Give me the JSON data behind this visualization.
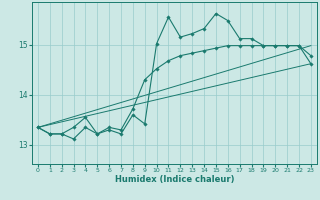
{
  "title": "",
  "xlabel": "Humidex (Indice chaleur)",
  "bg_color": "#cce8e5",
  "line_color": "#1a7a6e",
  "grid_color_major": "#99cccc",
  "grid_color_minor": "#b8ddd9",
  "xlim": [
    -0.5,
    23.5
  ],
  "ylim": [
    12.62,
    15.85
  ],
  "yticks": [
    13,
    14,
    15
  ],
  "xticks": [
    0,
    1,
    2,
    3,
    4,
    5,
    6,
    7,
    8,
    9,
    10,
    11,
    12,
    13,
    14,
    15,
    16,
    17,
    18,
    19,
    20,
    21,
    22,
    23
  ],
  "curve1_x": [
    0,
    1,
    2,
    3,
    4,
    5,
    6,
    7,
    8,
    9,
    10,
    11,
    12,
    13,
    14,
    15,
    16,
    17,
    18,
    19,
    20,
    21,
    22,
    23
  ],
  "curve1_y": [
    13.35,
    13.22,
    13.22,
    13.12,
    13.35,
    13.22,
    13.3,
    13.22,
    13.6,
    13.42,
    15.02,
    15.55,
    15.15,
    15.22,
    15.32,
    15.62,
    15.48,
    15.12,
    15.12,
    14.98,
    14.98,
    14.98,
    14.98,
    14.78
  ],
  "curve2_x": [
    0,
    1,
    2,
    3,
    4,
    5,
    6,
    7,
    8,
    9,
    10,
    11,
    12,
    13,
    14,
    15,
    16,
    17,
    18,
    19,
    20,
    21,
    22,
    23
  ],
  "curve2_y": [
    13.35,
    13.22,
    13.22,
    13.35,
    13.55,
    13.22,
    13.35,
    13.3,
    13.72,
    14.3,
    14.52,
    14.68,
    14.78,
    14.83,
    14.88,
    14.93,
    14.98,
    14.98,
    14.98,
    14.98,
    14.98,
    14.98,
    14.98,
    14.62
  ],
  "line1_x": [
    0,
    23
  ],
  "line1_y": [
    13.35,
    14.62
  ],
  "line2_x": [
    0,
    23
  ],
  "line2_y": [
    13.35,
    14.98
  ]
}
